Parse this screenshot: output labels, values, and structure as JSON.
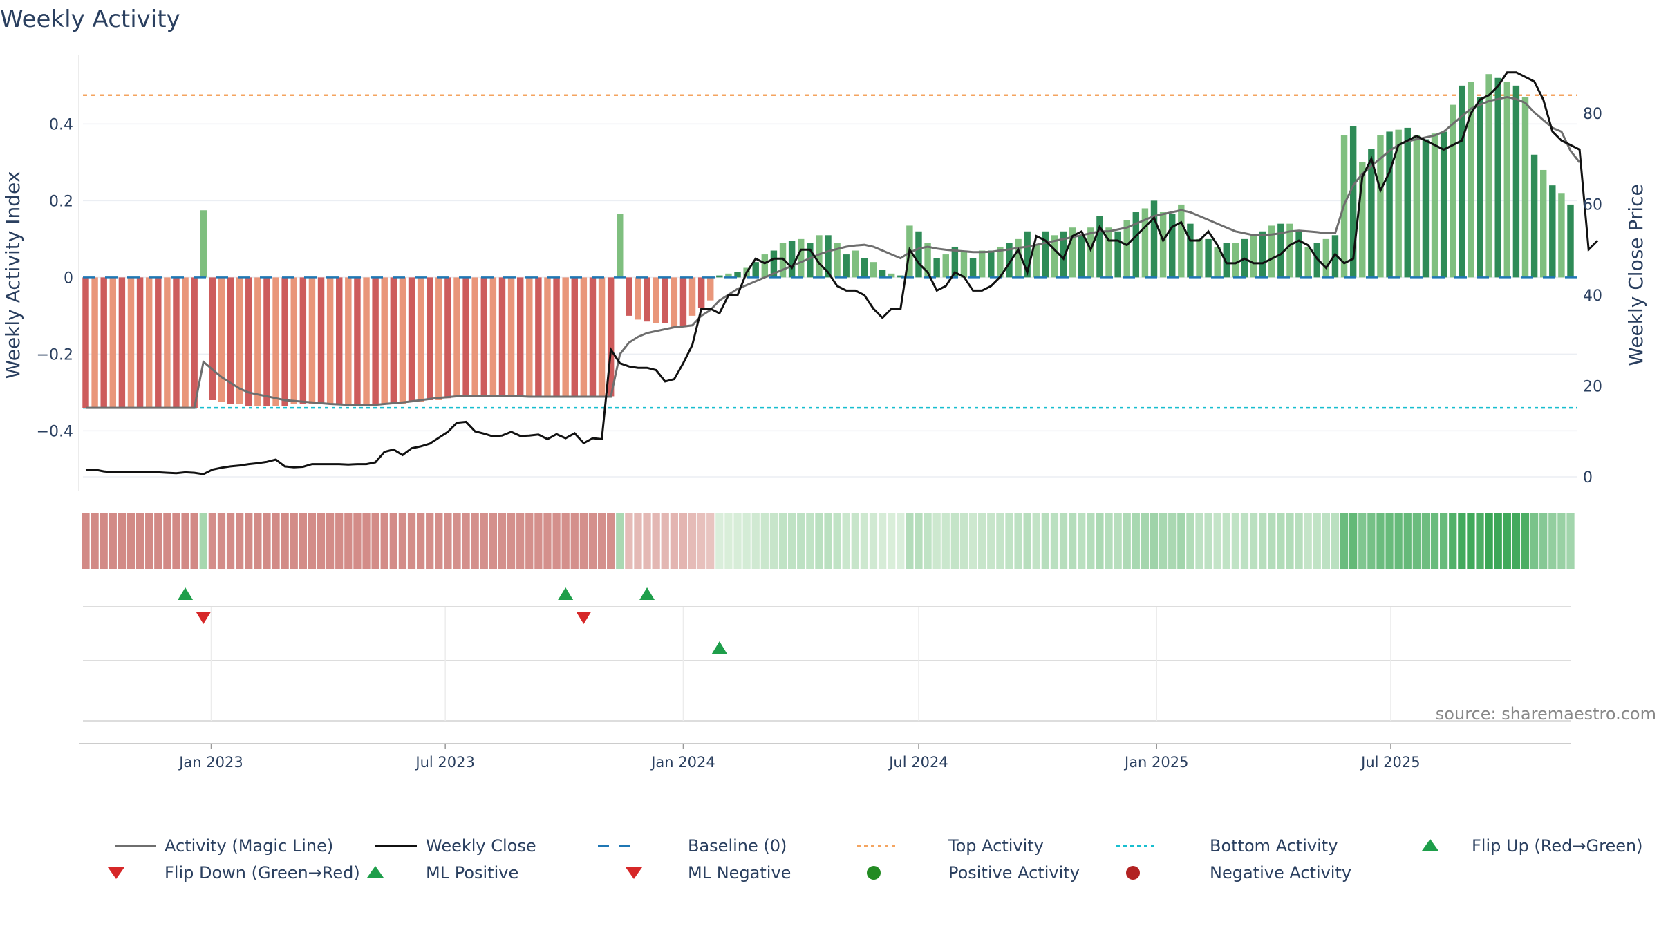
{
  "chart_data": {
    "type": "bar",
    "title": "Weekly Activity",
    "ylabel": "Weekly Activity Index",
    "y2label": "Weekly Close Price",
    "source": "source: sharemaestro.com",
    "start_date": "2022-09-26",
    "ylim": [
      -0.52,
      0.57
    ],
    "y2lim": [
      0,
      92
    ],
    "y_ticks": [
      {
        "v": 0.4,
        "label": "0.4"
      },
      {
        "v": 0.2,
        "label": "0.2"
      },
      {
        "v": 0,
        "label": "0"
      },
      {
        "v": -0.2,
        "label": "−0.2"
      },
      {
        "v": -0.4,
        "label": "−0.4"
      }
    ],
    "y2_ticks": [
      {
        "v": 80,
        "label": "80"
      },
      {
        "v": 60,
        "label": "60"
      },
      {
        "v": 40,
        "label": "40"
      },
      {
        "v": 20,
        "label": "20"
      },
      {
        "v": 0,
        "label": "0"
      }
    ],
    "x_ticks": [
      {
        "date": "2023-01-01",
        "label": "Jan 2023"
      },
      {
        "date": "2023-07-01",
        "label": "Jul 2023"
      },
      {
        "date": "2024-01-01",
        "label": "Jan 2024"
      },
      {
        "date": "2024-07-01",
        "label": "Jul 2024"
      },
      {
        "date": "2025-01-01",
        "label": "Jan 2025"
      },
      {
        "date": "2025-07-01",
        "label": "Jul 2025"
      }
    ],
    "top_activity": 0.475,
    "bottom_activity": -0.34,
    "activity": [
      -0.34,
      -0.34,
      -0.34,
      -0.34,
      -0.34,
      -0.34,
      -0.34,
      -0.34,
      -0.34,
      -0.34,
      -0.34,
      -0.34,
      -0.34,
      0.175,
      -0.32,
      -0.325,
      -0.33,
      -0.33,
      -0.335,
      -0.335,
      -0.335,
      -0.335,
      -0.335,
      -0.33,
      -0.33,
      -0.33,
      -0.33,
      -0.33,
      -0.33,
      -0.33,
      -0.33,
      -0.33,
      -0.33,
      -0.33,
      -0.33,
      -0.33,
      -0.325,
      -0.325,
      -0.32,
      -0.32,
      -0.315,
      -0.31,
      -0.31,
      -0.31,
      -0.31,
      -0.31,
      -0.31,
      -0.31,
      -0.31,
      -0.31,
      -0.31,
      -0.31,
      -0.31,
      -0.31,
      -0.31,
      -0.31,
      -0.31,
      -0.31,
      -0.31,
      0.165,
      -0.1,
      -0.11,
      -0.115,
      -0.12,
      -0.12,
      -0.13,
      -0.13,
      -0.1,
      -0.08,
      -0.06,
      0.005,
      0.01,
      0.015,
      0.025,
      0.04,
      0.06,
      0.07,
      0.09,
      0.095,
      0.1,
      0.09,
      0.11,
      0.11,
      0.09,
      0.06,
      0.07,
      0.05,
      0.04,
      0.02,
      0.01,
      0.005,
      0.135,
      0.12,
      0.09,
      0.05,
      0.06,
      0.08,
      0.07,
      0.05,
      0.07,
      0.07,
      0.08,
      0.09,
      0.1,
      0.12,
      0.085,
      0.12,
      0.11,
      0.12,
      0.13,
      0.11,
      0.13,
      0.16,
      0.13,
      0.12,
      0.15,
      0.17,
      0.18,
      0.2,
      0.17,
      0.165,
      0.19,
      0.14,
      0.1,
      0.1,
      0.08,
      0.09,
      0.09,
      0.1,
      0.11,
      0.12,
      0.135,
      0.14,
      0.14,
      0.12,
      0.08,
      0.09,
      0.1,
      0.11,
      0.37,
      0.395,
      0.3,
      0.335,
      0.37,
      0.38,
      0.385,
      0.39,
      0.37,
      0.36,
      0.375,
      0.38,
      0.45,
      0.5,
      0.51,
      0.47,
      0.53,
      0.52,
      0.51,
      0.5,
      0.47,
      0.32,
      0.28,
      0.24,
      0.22,
      0.19
    ],
    "magic_line": [
      -0.34,
      -0.34,
      -0.34,
      -0.34,
      -0.34,
      -0.34,
      -0.34,
      -0.34,
      -0.34,
      -0.34,
      -0.34,
      -0.34,
      -0.34,
      -0.22,
      -0.24,
      -0.26,
      -0.275,
      -0.29,
      -0.3,
      -0.305,
      -0.31,
      -0.315,
      -0.32,
      -0.322,
      -0.324,
      -0.326,
      -0.328,
      -0.33,
      -0.331,
      -0.332,
      -0.333,
      -0.333,
      -0.332,
      -0.33,
      -0.328,
      -0.326,
      -0.323,
      -0.32,
      -0.317,
      -0.314,
      -0.312,
      -0.31,
      -0.31,
      -0.31,
      -0.31,
      -0.31,
      -0.31,
      -0.31,
      -0.31,
      -0.311,
      -0.311,
      -0.311,
      -0.311,
      -0.311,
      -0.311,
      -0.311,
      -0.311,
      -0.311,
      -0.311,
      -0.2,
      -0.17,
      -0.155,
      -0.145,
      -0.14,
      -0.135,
      -0.13,
      -0.128,
      -0.125,
      -0.1,
      -0.085,
      -0.06,
      -0.045,
      -0.03,
      -0.02,
      -0.01,
      0.0,
      0.01,
      0.02,
      0.03,
      0.04,
      0.05,
      0.06,
      0.068,
      0.074,
      0.08,
      0.083,
      0.085,
      0.08,
      0.07,
      0.06,
      0.05,
      0.065,
      0.075,
      0.08,
      0.075,
      0.072,
      0.07,
      0.068,
      0.066,
      0.066,
      0.067,
      0.07,
      0.073,
      0.077,
      0.08,
      0.085,
      0.09,
      0.095,
      0.1,
      0.105,
      0.11,
      0.115,
      0.12,
      0.12,
      0.125,
      0.13,
      0.14,
      0.15,
      0.16,
      0.165,
      0.17,
      0.175,
      0.17,
      0.16,
      0.15,
      0.14,
      0.13,
      0.12,
      0.115,
      0.11,
      0.11,
      0.112,
      0.115,
      0.12,
      0.122,
      0.12,
      0.118,
      0.115,
      0.115,
      0.19,
      0.24,
      0.27,
      0.29,
      0.31,
      0.33,
      0.345,
      0.355,
      0.36,
      0.365,
      0.37,
      0.38,
      0.4,
      0.42,
      0.44,
      0.45,
      0.46,
      0.465,
      0.47,
      0.465,
      0.455,
      0.43,
      0.41,
      0.39,
      0.38,
      0.33,
      0.3
    ],
    "weekly_close": [
      1.5,
      1.6,
      1.2,
      1,
      1,
      1.1,
      1.1,
      1,
      1,
      0.9,
      0.8,
      1,
      0.9,
      0.6,
      1.6,
      2,
      2.3,
      2.5,
      2.8,
      3,
      3.3,
      3.8,
      2.3,
      2.1,
      2.2,
      2.8,
      2.8,
      2.8,
      2.8,
      2.7,
      2.8,
      2.8,
      3.2,
      5.5,
      6,
      4.8,
      6.3,
      6.7,
      7.3,
      8.6,
      9.9,
      11.9,
      12.1,
      10,
      9.5,
      8.9,
      9.1,
      9.9,
      9,
      9.1,
      9.3,
      8.3,
      9.4,
      8.5,
      9.6,
      7.4,
      8.5,
      8.3,
      28,
      25,
      24.3,
      24,
      24,
      23.5,
      21,
      21.5,
      25,
      29,
      37,
      37,
      36,
      40,
      40,
      45,
      48,
      47,
      48,
      48,
      46,
      50,
      50,
      47,
      45,
      42,
      41,
      41,
      40,
      37,
      35,
      37,
      37,
      50,
      47,
      45,
      41,
      42,
      45,
      44,
      41,
      41,
      42,
      44,
      47,
      50,
      45,
      53,
      52,
      50,
      48,
      53,
      54,
      50,
      55,
      52,
      52,
      51,
      53,
      55,
      57,
      52,
      55,
      56,
      52,
      52,
      54,
      51,
      47,
      47,
      48,
      47,
      47,
      48,
      49,
      51,
      52,
      51,
      48,
      46,
      49,
      47,
      48,
      66,
      70,
      63,
      67,
      73,
      74,
      75,
      74,
      73,
      72,
      73,
      74,
      80,
      83,
      84,
      86,
      89,
      89,
      88,
      87,
      83,
      76,
      74,
      73,
      72,
      50,
      52
    ],
    "flip_up_dates": [
      "2022-12-12",
      "2023-10-02",
      "2023-12-04"
    ],
    "flip_down_dates": [
      "2022-12-26",
      "2023-10-16"
    ],
    "ml_positive_dates": [
      "2024-01-29"
    ],
    "legend": [
      "Activity (Magic Line)",
      "Weekly Close",
      "Baseline (0)",
      "Top Activity",
      "Bottom Activity",
      "Flip Up (Red→Green)",
      "Flip Down (Green→Red)",
      "ML Positive",
      "ML Negative",
      "Positive Activity",
      "Negative Activity"
    ]
  },
  "colors": {
    "pos_dark": "#2e8b57",
    "pos_light": "#7fbf7f",
    "neg_dark": "#cd5c5c",
    "neg_light": "#e9967a",
    "magic_line": "#6e6e6e",
    "close": "#111111",
    "baseline": "#1f77b4",
    "top": "#f4a460",
    "bottom": "#17becf",
    "flip_up": "#1e9e4a",
    "flip_down": "#d62728",
    "pos_marker": "#228b22",
    "neg_marker": "#b22222"
  }
}
